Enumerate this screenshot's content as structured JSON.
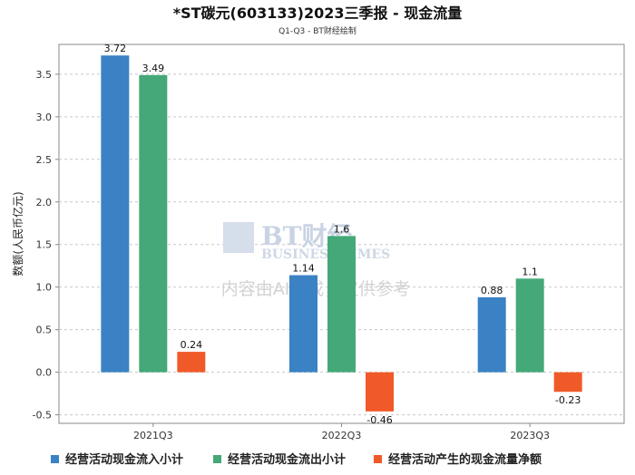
{
  "chart_data": {
    "type": "bar",
    "title": "*ST碳元(603133)2023三季报 - 现金流量",
    "subtitle": "Q1-Q3 - BT财经绘制",
    "ylabel": "数额(人民币亿元)",
    "xlabel": "",
    "categories": [
      "2021Q3",
      "2022Q3",
      "2023Q3"
    ],
    "series": [
      {
        "name": "经营活动现金流入小计",
        "color": "#3a82c4",
        "values": [
          3.72,
          1.14,
          0.88
        ],
        "labels": [
          "3.72",
          "1.14",
          "0.88"
        ]
      },
      {
        "name": "经营活动现金流出小计",
        "color": "#45a878",
        "values": [
          3.49,
          1.6,
          1.1
        ],
        "labels": [
          "3.49",
          "1.6",
          "1.1"
        ]
      },
      {
        "name": "经营活动产生的现金流量净额",
        "color": "#f05a28",
        "values": [
          0.24,
          -0.46,
          -0.23
        ],
        "labels": [
          "0.24",
          "-0.46",
          "-0.23"
        ]
      }
    ],
    "ylim": [
      -0.6,
      3.85
    ],
    "yticks": [
      "-0.5",
      "0.0",
      "0.5",
      "1.0",
      "1.5",
      "2.0",
      "2.5",
      "3.0",
      "3.5"
    ],
    "grid": true,
    "legend_position": "bottom"
  },
  "watermark": {
    "logo_text": "BT财经",
    "logo_sub": "BUSINESS TIMES",
    "notice": "内容由AI生成，仅供参考"
  }
}
